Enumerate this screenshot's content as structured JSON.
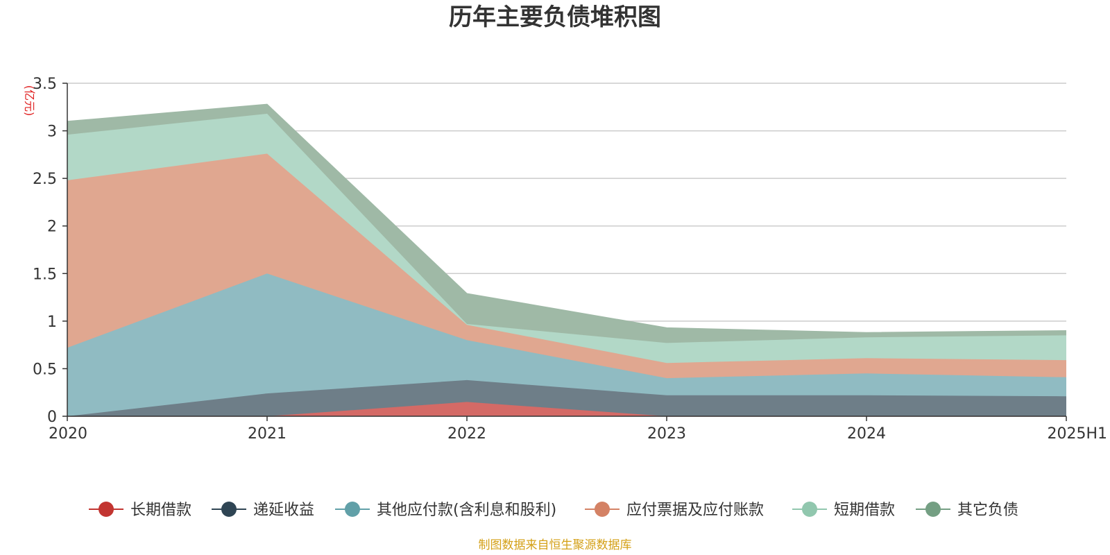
{
  "chart_data": {
    "type": "area",
    "stacked": true,
    "title": "历年主要负债堆积图",
    "unit_label": "(亿元)",
    "categories": [
      "2020",
      "2021",
      "2022",
      "2023",
      "2024",
      "2025H1"
    ],
    "y_ticks": [
      "0",
      "0.5",
      "1",
      "1.5",
      "2",
      "2.5",
      "3",
      "3.5"
    ],
    "ylim": [
      0,
      3.5
    ],
    "grid": true,
    "legend_position": "bottom",
    "series": [
      {
        "name": "长期借款",
        "values": [
          0,
          0,
          0.15,
          0,
          0,
          0
        ],
        "color": "#c23531",
        "fill": "#d46a66"
      },
      {
        "name": "递延收益",
        "values": [
          0,
          0.24,
          0.23,
          0.22,
          0.22,
          0.21
        ],
        "color": "#2f4554",
        "fill": "#6e7e88"
      },
      {
        "name": "其他应付款(含利息和股利)",
        "values": [
          0.72,
          1.26,
          0.42,
          0.18,
          0.23,
          0.2
        ],
        "color": "#61a0a8",
        "fill": "#90bbc2"
      },
      {
        "name": "应付票据及应付账款",
        "values": [
          1.76,
          1.26,
          0.16,
          0.16,
          0.16,
          0.18
        ],
        "color": "#d48265",
        "fill": "#e0a790"
      },
      {
        "name": "短期借款",
        "values": [
          0.48,
          0.42,
          0.01,
          0.21,
          0.22,
          0.26
        ],
        "color": "#91c7ae",
        "fill": "#b2d8c7"
      },
      {
        "name": "其它负债",
        "values": [
          0.14,
          0.1,
          0.32,
          0.16,
          0.05,
          0.05
        ],
        "color": "#749f83",
        "fill": "#9fb9a6"
      }
    ],
    "source": "制图数据来自恒生聚源数据库"
  }
}
